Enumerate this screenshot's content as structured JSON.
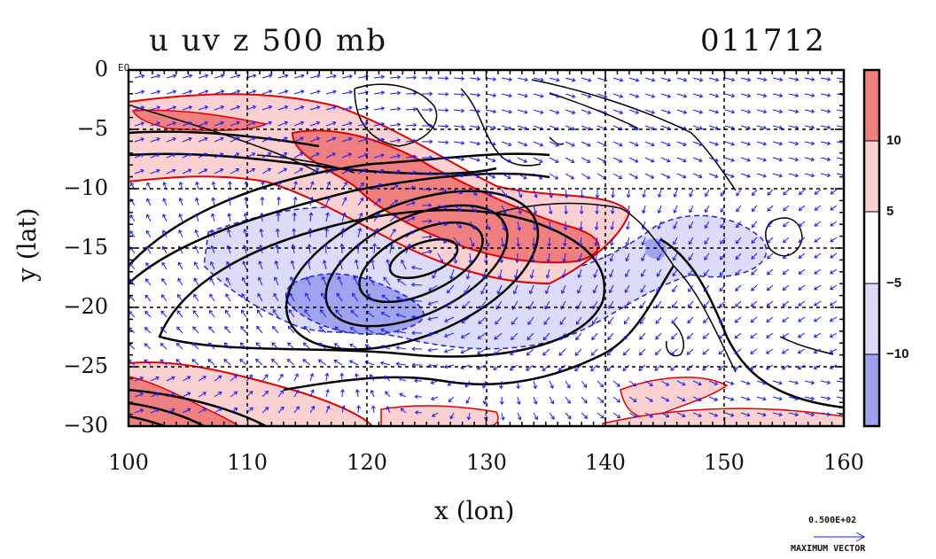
{
  "title": {
    "left": "u uv z 500 mb",
    "right": "011712"
  },
  "axes": {
    "xlabel": "x (lon)",
    "ylabel": "y (lat)",
    "xticks": [
      "100",
      "110",
      "120",
      "130",
      "140",
      "150",
      "160"
    ],
    "yticks": [
      "0",
      "−5",
      "−10",
      "−15",
      "−20",
      "−25",
      "−30"
    ],
    "equator_mark": "EQ",
    "xlim": [
      100,
      160
    ],
    "ylim": [
      -30,
      0
    ]
  },
  "colorbar": {
    "labels": [
      "10",
      "5",
      "−5",
      "−10"
    ],
    "colors": [
      "#f08080",
      "#fbd0d0",
      "#ffffff",
      "#dcdcf8",
      "#9ea2ee"
    ]
  },
  "max_vector": {
    "value": "0.500E+02",
    "label": "MAXIMUM VECTOR"
  },
  "colors": {
    "positive_strong": "#f08080",
    "positive_light": "#f8cccc",
    "negative_light": "#d8daf8",
    "negative_strong": "#a0a4ee",
    "contour_positive": "#e00000",
    "contour_negative": "#2020e0",
    "vectors": "#1a1aff",
    "height_contours": "#000000"
  }
}
